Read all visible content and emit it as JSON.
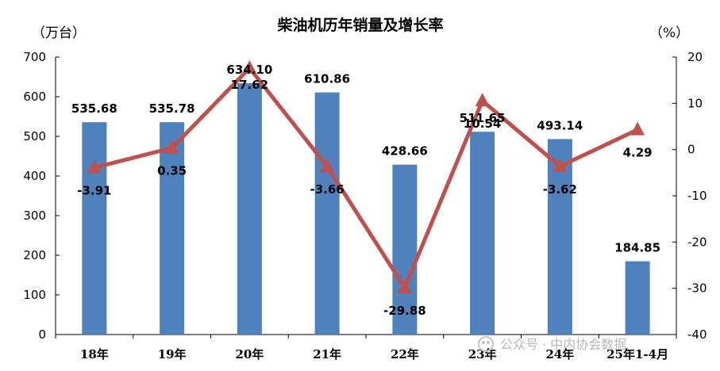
{
  "chart_data": {
    "type": "bar",
    "title": "柴油机历年销量及增长率",
    "left_unit": "（万台）",
    "right_unit": "（%）",
    "categories": [
      "18年",
      "19年",
      "20年",
      "21年",
      "22年",
      "23年",
      "24年",
      "25年1-4月"
    ],
    "series": [
      {
        "type": "bar",
        "values": [
          535.68,
          535.78,
          634.1,
          610.86,
          428.66,
          511.65,
          493.14,
          184.85
        ]
      },
      {
        "type": "line",
        "axis": "right",
        "values": [
          -3.91,
          0.35,
          17.62,
          -3.66,
          -29.88,
          10.54,
          -3.62,
          4.29
        ]
      }
    ],
    "bar_labels": [
      "535.68",
      "535.78",
      "634.10",
      "610.86",
      "428.66",
      "511.65",
      "493.14",
      "184.85"
    ],
    "line_labels": [
      "-3.91",
      "0.35",
      "17.62",
      "-3.66",
      "-29.88",
      "10.54",
      "-3.62",
      "4.29"
    ],
    "ylim_left": [
      0,
      700
    ],
    "ylim_right": [
      -40,
      20
    ],
    "left_ticks": [
      "0",
      "100",
      "200",
      "300",
      "400",
      "500",
      "600",
      "700"
    ],
    "right_ticks": [
      "-40",
      "-30",
      "-20",
      "-10",
      "0",
      "10",
      "20"
    ],
    "colors": {
      "bar": "#4f81bd",
      "line": "#c0504d"
    },
    "grid": false
  },
  "watermark": "公众号 · 中内协会数据"
}
